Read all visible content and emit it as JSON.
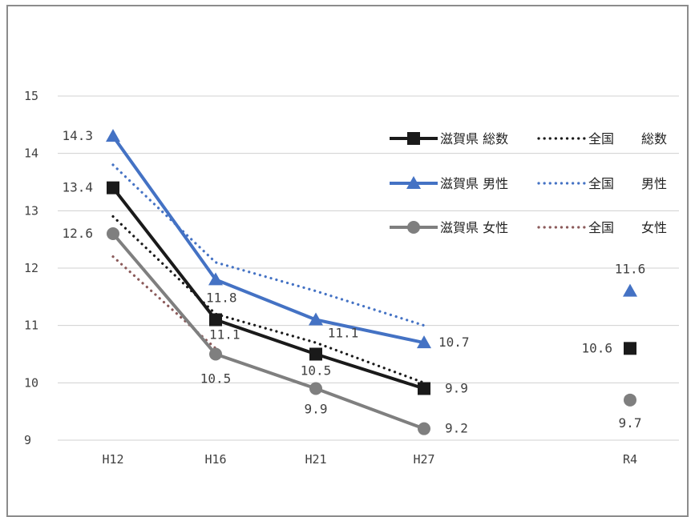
{
  "chart_data": {
    "type": "line",
    "categories": [
      "H12",
      "H16",
      "H21",
      "H27",
      "R4"
    ],
    "ylim": [
      9,
      15
    ],
    "yticks": [
      9,
      10,
      11,
      12,
      13,
      14,
      15
    ],
    "grid": true,
    "legend_position": "top-right",
    "series": [
      {
        "name": "滋賀県 総数",
        "style": "solid",
        "marker": "square",
        "color": "#1a1a1a",
        "values": [
          13.4,
          11.1,
          10.5,
          9.9,
          null
        ]
      },
      {
        "name": "全国 総数",
        "style": "dotted",
        "color": "#1a1a1a",
        "values": [
          12.9,
          11.2,
          10.7,
          10.0,
          null
        ]
      },
      {
        "name": "滋賀県 男性",
        "style": "solid",
        "marker": "triangle",
        "color": "#4472c4",
        "values": [
          14.3,
          11.8,
          11.1,
          10.7,
          null
        ]
      },
      {
        "name": "全国 男性",
        "style": "dotted",
        "color": "#4472c4",
        "values": [
          13.8,
          12.1,
          11.6,
          11.0,
          null
        ]
      },
      {
        "name": "滋賀県 女性",
        "style": "solid",
        "marker": "circle",
        "color": "#7f7f7f",
        "values": [
          12.6,
          10.5,
          9.9,
          9.2,
          null
        ]
      },
      {
        "name": "全国 女性",
        "style": "dotted",
        "color": "#8b5a5a",
        "values": [
          12.2,
          10.6,
          null,
          null,
          null
        ]
      }
    ],
    "r4_points": [
      {
        "series": "滋賀県 男性",
        "value": 11.6,
        "label": "11.6"
      },
      {
        "series": "滋賀県 総数",
        "value": 10.6,
        "label": "10.6"
      },
      {
        "series": "滋賀県 女性",
        "value": 9.7,
        "label": "9.7"
      }
    ],
    "data_labels": [
      {
        "series": "滋賀県 男性",
        "index": 0,
        "text": "14.3"
      },
      {
        "series": "滋賀県 総数",
        "index": 0,
        "text": "13.4"
      },
      {
        "series": "滋賀県 女性",
        "index": 0,
        "text": "12.6"
      },
      {
        "series": "滋賀県 男性",
        "index": 1,
        "text": "11.8"
      },
      {
        "series": "滋賀県 総数",
        "index": 1,
        "text": "11.1"
      },
      {
        "series": "滋賀県 女性",
        "index": 1,
        "text": "10.5"
      },
      {
        "series": "滋賀県 男性",
        "index": 2,
        "text": "11.1"
      },
      {
        "series": "滋賀県 総数",
        "index": 2,
        "text": "10.5"
      },
      {
        "series": "滋賀県 女性",
        "index": 2,
        "text": "9.9"
      },
      {
        "series": "滋賀県 男性",
        "index": 3,
        "text": "10.7"
      },
      {
        "series": "滋賀県 総数",
        "index": 3,
        "text": "9.9"
      },
      {
        "series": "滋賀県 女性",
        "index": 3,
        "text": "9.2"
      }
    ],
    "legend": {
      "rows": [
        {
          "left": "滋賀県 総数",
          "right_prefix": "全国",
          "right_label": "総数"
        },
        {
          "left": "滋賀県 男性",
          "right_prefix": "全国",
          "right_label": "男性"
        },
        {
          "left": "滋賀県 女性",
          "right_prefix": "全国",
          "right_label": "女性"
        }
      ]
    }
  }
}
